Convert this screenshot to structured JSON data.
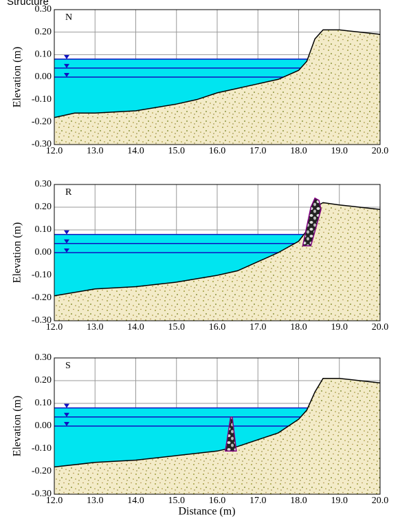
{
  "title": "Structure",
  "chart_data": [
    {
      "type": "profile",
      "panel_label": "N",
      "ylabel": "Elevation (m)",
      "xlim": [
        12,
        20
      ],
      "ylim": [
        -0.3,
        0.3
      ],
      "xticks": [
        {
          "value": 12,
          "label": "12.0"
        },
        {
          "value": 13,
          "label": "13.0"
        },
        {
          "value": 14,
          "label": "14.0"
        },
        {
          "value": 15,
          "label": "15.0"
        },
        {
          "value": 16,
          "label": "16.0"
        },
        {
          "value": 17,
          "label": "17.0"
        },
        {
          "value": 18,
          "label": "18.0"
        },
        {
          "value": 19,
          "label": "19.0"
        },
        {
          "value": 20,
          "label": "20.0"
        }
      ],
      "yticks": [
        {
          "value": -0.3,
          "label": "-0.30"
        },
        {
          "value": -0.2,
          "label": "-0.20"
        },
        {
          "value": -0.1,
          "label": "-0.10"
        },
        {
          "value": 0,
          "label": "0.00"
        },
        {
          "value": 0.1,
          "label": "0.10"
        },
        {
          "value": 0.2,
          "label": "0.20"
        },
        {
          "value": 0.3,
          "label": "0.30"
        }
      ],
      "grid": true,
      "water_levels": [
        0.08,
        0.04,
        0.0
      ],
      "water_color": "#00e5f0",
      "profile": {
        "x": [
          12,
          12.5,
          13,
          14,
          15,
          15.5,
          16,
          16.5,
          17,
          17.5,
          18,
          18.2,
          18.4,
          18.6,
          19,
          19.5,
          20
        ],
        "values": [
          -0.18,
          -0.16,
          -0.16,
          -0.15,
          -0.12,
          -0.1,
          -0.07,
          -0.05,
          -0.03,
          -0.01,
          0.03,
          0.07,
          0.17,
          0.21,
          0.21,
          0.2,
          0.19
        ]
      }
    },
    {
      "type": "profile",
      "panel_label": "R",
      "ylabel": "Elevation (m)",
      "xlim": [
        12,
        20
      ],
      "ylim": [
        -0.3,
        0.3
      ],
      "xticks": [
        {
          "value": 12,
          "label": "12.0"
        },
        {
          "value": 13,
          "label": "13.0"
        },
        {
          "value": 14,
          "label": "14.0"
        },
        {
          "value": 15,
          "label": "15.0"
        },
        {
          "value": 16,
          "label": "16.0"
        },
        {
          "value": 17,
          "label": "17.0"
        },
        {
          "value": 18,
          "label": "18.0"
        },
        {
          "value": 19,
          "label": "19.0"
        },
        {
          "value": 20,
          "label": "20.0"
        }
      ],
      "yticks": [
        {
          "value": -0.3,
          "label": "-0.30"
        },
        {
          "value": -0.2,
          "label": "-0.20"
        },
        {
          "value": -0.1,
          "label": "-0.10"
        },
        {
          "value": 0,
          "label": "0.00"
        },
        {
          "value": 0.1,
          "label": "0.10"
        },
        {
          "value": 0.2,
          "label": "0.20"
        },
        {
          "value": 0.3,
          "label": "0.30"
        }
      ],
      "grid": true,
      "water_levels": [
        0.08,
        0.04,
        0.0
      ],
      "water_color": "#00e5f0",
      "profile": {
        "x": [
          12,
          13,
          14,
          15,
          16,
          16.5,
          17,
          17.5,
          18,
          18.3,
          18.5,
          18.6,
          19,
          19.5,
          20
        ],
        "values": [
          -0.19,
          -0.16,
          -0.15,
          -0.13,
          -0.1,
          -0.08,
          -0.04,
          0.0,
          0.05,
          0.12,
          0.21,
          0.22,
          0.21,
          0.2,
          0.19
        ]
      },
      "structure": {
        "x": [
          18.1,
          18.3,
          18.4,
          18.5,
          18.55,
          18.3
        ],
        "values": [
          0.03,
          0.2,
          0.24,
          0.23,
          0.19,
          0.03
        ]
      }
    },
    {
      "type": "profile",
      "panel_label": "S",
      "ylabel": "Elevation (m)",
      "xlabel": "Distance (m)",
      "xlim": [
        12,
        20
      ],
      "ylim": [
        -0.3,
        0.3
      ],
      "xticks": [
        {
          "value": 12,
          "label": "12.0"
        },
        {
          "value": 13,
          "label": "13.0"
        },
        {
          "value": 14,
          "label": "14.0"
        },
        {
          "value": 15,
          "label": "15.0"
        },
        {
          "value": 16,
          "label": "16.0"
        },
        {
          "value": 17,
          "label": "17.0"
        },
        {
          "value": 18,
          "label": "18.0"
        },
        {
          "value": 19,
          "label": "19.0"
        },
        {
          "value": 20,
          "label": "20.0"
        }
      ],
      "yticks": [
        {
          "value": -0.3,
          "label": "-0.30"
        },
        {
          "value": -0.2,
          "label": "-0.20"
        },
        {
          "value": -0.1,
          "label": "-0.10"
        },
        {
          "value": 0,
          "label": "0.00"
        },
        {
          "value": 0.1,
          "label": "0.10"
        },
        {
          "value": 0.2,
          "label": "0.20"
        },
        {
          "value": 0.3,
          "label": "0.30"
        }
      ],
      "grid": true,
      "water_levels": [
        0.08,
        0.04,
        0.0
      ],
      "water_color": "#00e5f0",
      "profile": {
        "x": [
          12,
          13,
          14,
          15,
          16,
          16.5,
          17,
          17.5,
          18,
          18.2,
          18.4,
          18.6,
          19,
          19.5,
          20
        ],
        "values": [
          -0.18,
          -0.16,
          -0.15,
          -0.13,
          -0.11,
          -0.09,
          -0.06,
          -0.03,
          0.03,
          0.07,
          0.15,
          0.21,
          0.21,
          0.2,
          0.19
        ]
      },
      "structure": {
        "x": [
          16.2,
          16.33,
          16.37,
          16.47
        ],
        "values": [
          -0.11,
          0.04,
          0.04,
          -0.11
        ]
      }
    }
  ]
}
